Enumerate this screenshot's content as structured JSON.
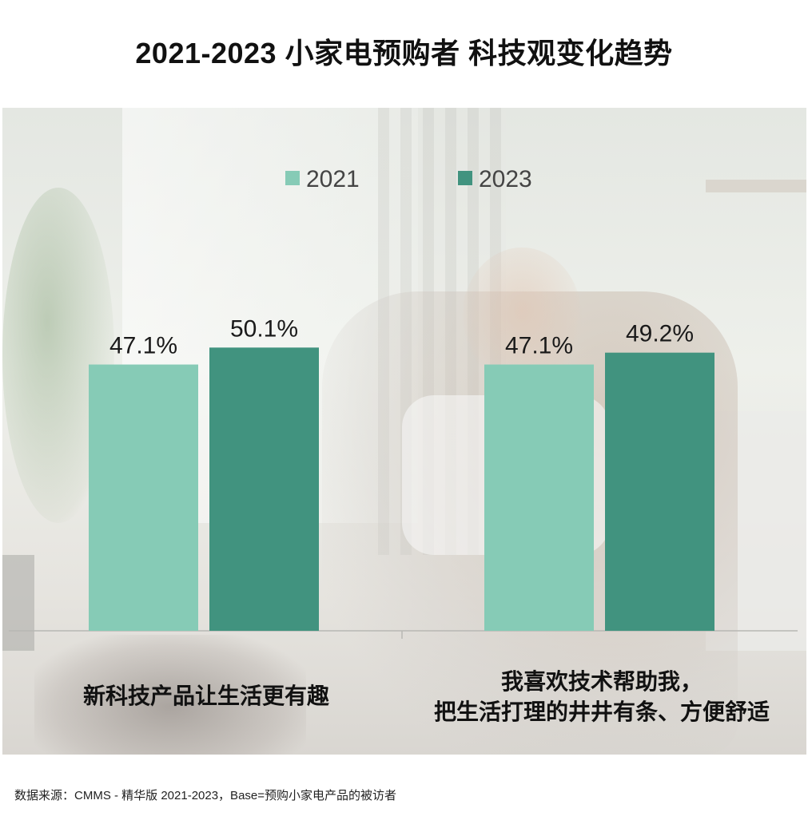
{
  "title": "2021-2023  小家电预购者  科技观变化趋势",
  "colors": {
    "series_2021": "#86cbb6",
    "series_2023": "#41937f",
    "text": "#111111"
  },
  "chart_data": {
    "type": "bar",
    "title": "2021-2023  小家电预购者  科技观变化趋势",
    "categories": [
      [
        "新科技产品让生活更有趣"
      ],
      [
        "我喜欢技术帮助我，",
        "把生活打理的井井有条、方便舒适"
      ]
    ],
    "series": [
      {
        "name": "2021",
        "values": [
          47.1,
          47.1
        ],
        "labels": [
          "47.1%",
          "47.1%"
        ]
      },
      {
        "name": "2023",
        "values": [
          50.1,
          49.2
        ],
        "labels": [
          "50.1%",
          "49.2%"
        ]
      }
    ],
    "value_unit": "%",
    "legend_position": "top-center",
    "grid": false,
    "ylim": [
      0,
      100
    ]
  },
  "source": "数据来源：CMMS - 精华版 2021-2023，Base=预购小家电产品的被访者"
}
